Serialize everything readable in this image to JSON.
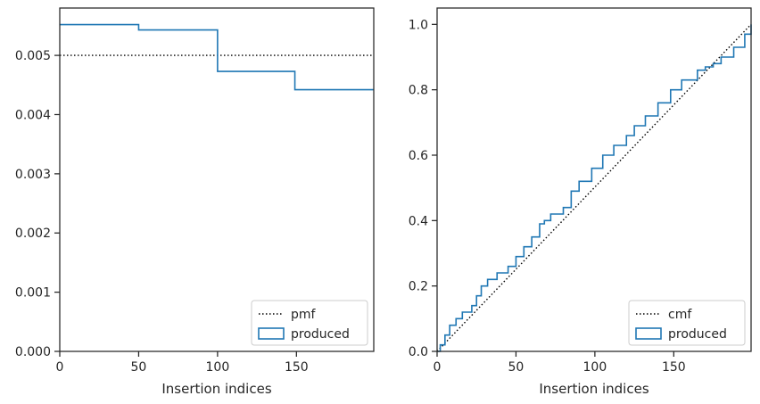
{
  "chart_data": [
    {
      "type": "line",
      "xlabel": "Insertion indices",
      "ylabel": "",
      "xlim": [
        0,
        199
      ],
      "ylim": [
        0,
        0.0058
      ],
      "xticks": [
        0,
        50,
        100,
        150
      ],
      "yticks": [
        0,
        0.001,
        0.002,
        0.003,
        0.004,
        0.005
      ],
      "ytick_labels": [
        "0.000",
        "0.001",
        "0.002",
        "0.003",
        "0.004",
        "0.005"
      ],
      "grid": false,
      "legend_position": "bottom-right",
      "series": [
        {
          "name": "pmf",
          "style": "dotted",
          "color": "#000000",
          "x": [
            0,
            199
          ],
          "y": [
            0.005,
            0.005
          ]
        },
        {
          "name": "produced",
          "style": "step",
          "color": "#1f77b4",
          "x": [
            0,
            50,
            100,
            149,
            199
          ],
          "y": [
            0.00552,
            0.00543,
            0.00473,
            0.00442,
            0.00442
          ]
        }
      ]
    },
    {
      "type": "line",
      "xlabel": "Insertion indices",
      "ylabel": "",
      "xlim": [
        0,
        199
      ],
      "ylim": [
        0,
        1.05
      ],
      "xticks": [
        0,
        50,
        100,
        150
      ],
      "yticks": [
        0,
        0.2,
        0.4,
        0.6,
        0.8,
        1.0
      ],
      "ytick_labels": [
        "0.0",
        "0.2",
        "0.4",
        "0.6",
        "0.8",
        "1.0"
      ],
      "grid": false,
      "legend_position": "bottom-right",
      "series": [
        {
          "name": "cmf",
          "style": "dotted",
          "color": "#000000",
          "x": [
            0,
            199
          ],
          "y": [
            0,
            1.0
          ]
        },
        {
          "name": "produced",
          "style": "step",
          "color": "#1f77b4",
          "x": [
            0,
            2,
            5,
            8,
            12,
            16,
            22,
            25,
            28,
            32,
            38,
            45,
            50,
            55,
            60,
            65,
            68,
            72,
            80,
            85,
            90,
            98,
            105,
            112,
            120,
            125,
            132,
            140,
            148,
            155,
            165,
            170,
            175,
            180,
            188,
            195,
            199
          ],
          "y": [
            0,
            0.02,
            0.05,
            0.08,
            0.1,
            0.12,
            0.14,
            0.17,
            0.2,
            0.22,
            0.24,
            0.26,
            0.29,
            0.32,
            0.35,
            0.39,
            0.4,
            0.42,
            0.44,
            0.49,
            0.52,
            0.56,
            0.6,
            0.63,
            0.66,
            0.69,
            0.72,
            0.76,
            0.8,
            0.83,
            0.86,
            0.87,
            0.88,
            0.9,
            0.93,
            0.97,
            1.0
          ]
        }
      ]
    }
  ]
}
